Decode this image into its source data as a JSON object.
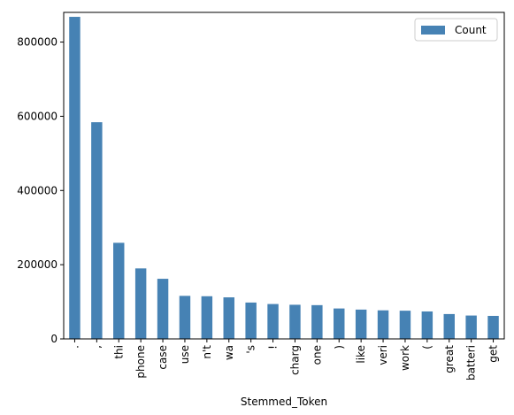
{
  "chart_data": {
    "type": "bar",
    "xlabel": "Stemmed_Token",
    "ylabel": "",
    "ylim": [
      0,
      880000
    ],
    "yticks": [
      0,
      200000,
      400000,
      600000,
      800000
    ],
    "legend_position": "top-right",
    "grid": false,
    "bar_color": "#4682b4",
    "categories": [
      ".",
      ",",
      "thi",
      "phone",
      "case",
      "use",
      "n't",
      "wa",
      "'s",
      "!",
      "charg",
      "one",
      ")",
      "like",
      "veri",
      "work",
      "(",
      "great",
      "batteri",
      "get"
    ],
    "series": [
      {
        "name": "Count",
        "values": [
          868000,
          584000,
          259000,
          190000,
          162000,
          116000,
          115000,
          112000,
          98000,
          94000,
          92000,
          91000,
          82000,
          79000,
          77000,
          76000,
          74000,
          67000,
          63000,
          62000
        ]
      }
    ]
  }
}
